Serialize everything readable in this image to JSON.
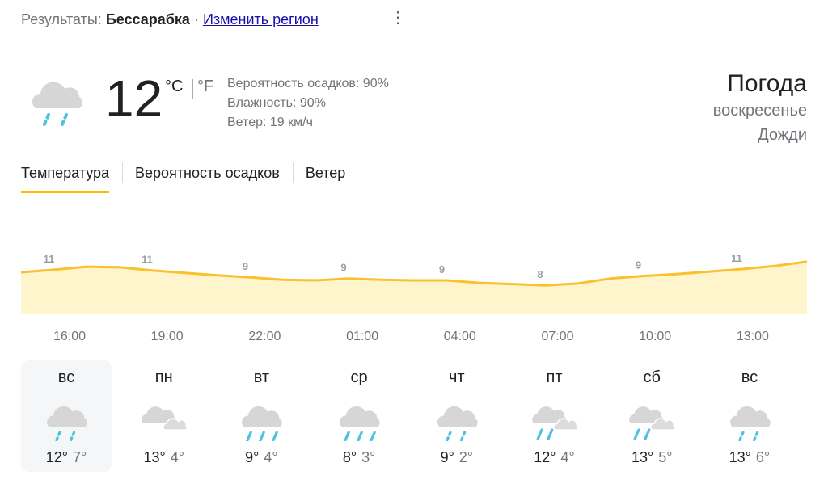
{
  "header": {
    "results_label": "Результаты:",
    "location": "Бессарабка",
    "separator": "·",
    "change_region": "Изменить регион",
    "more_icon": "⋮"
  },
  "current": {
    "icon": "light-rain",
    "temperature": "12",
    "unit_c": "°C",
    "unit_f": "°F",
    "precipitation": "Вероятность осадков: 90%",
    "humidity": "Влажность: 90%",
    "wind": "Ветер: 19 км/ч"
  },
  "summary": {
    "title": "Погода",
    "day": "воскресенье",
    "condition": "Дожди"
  },
  "tabs": [
    {
      "label": "Температура",
      "active": true
    },
    {
      "label": "Вероятность осадков"
    },
    {
      "label": "Ветер"
    }
  ],
  "colors": {
    "line": "#fbc02d",
    "fill": "#fef5cc",
    "rain": "#4ec3e0",
    "cloud": "#d6d6d6"
  },
  "chart_data": {
    "type": "area",
    "x_labels": [
      "16:00",
      "19:00",
      "22:00",
      "01:00",
      "04:00",
      "07:00",
      "10:00",
      "13:00"
    ],
    "point_labels": [
      "11",
      "11",
      "9",
      "9",
      "9",
      "8",
      "9",
      "11"
    ],
    "values": [
      10.0,
      10.4,
      10.9,
      10.8,
      10.3,
      9.9,
      9.5,
      9.2,
      8.8,
      8.7,
      9.0,
      8.8,
      8.7,
      8.7,
      8.3,
      8.1,
      7.9,
      8.2,
      9.0,
      9.4,
      9.7,
      10.1,
      10.5,
      11.0,
      11.7
    ]
  },
  "days": [
    {
      "name": "вс",
      "icon": "light-rain",
      "high": "12°",
      "low": "7°",
      "selected": true
    },
    {
      "name": "пн",
      "icon": "cloudy",
      "high": "13°",
      "low": "4°"
    },
    {
      "name": "вт",
      "icon": "rain",
      "high": "9°",
      "low": "4°"
    },
    {
      "name": "ср",
      "icon": "rain",
      "high": "8°",
      "low": "3°"
    },
    {
      "name": "чт",
      "icon": "light-rain",
      "high": "9°",
      "low": "2°"
    },
    {
      "name": "пт",
      "icon": "cloudy-rain",
      "high": "12°",
      "low": "4°"
    },
    {
      "name": "сб",
      "icon": "cloudy-rain",
      "high": "13°",
      "low": "5°"
    },
    {
      "name": "вс",
      "icon": "light-rain",
      "high": "13°",
      "low": "6°"
    }
  ]
}
